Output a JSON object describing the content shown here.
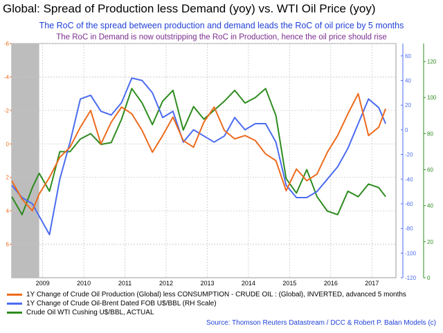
{
  "title": "Global: Spread of Production less Demand (yoy) vs. WTI Oil Price (yoy)",
  "subtitle": "The RoC of the spread between production and demand leads the RoC of oil price by 5 months",
  "subtitle2": "The RoC in Demand is now outstripping the RoC in Production, hence the oil price should rise",
  "source": "Source: Thomson Reuters Datastream / DCC & Robert P. Balan Models (c)",
  "colors": {
    "orange": "#ee6a1c",
    "blue": "#4a6bf0",
    "green": "#2e8b1f",
    "title_blue": "#1f3fd8",
    "purple": "#7b2b8f",
    "shade": "#bdbdbd"
  },
  "chart_data": {
    "type": "line",
    "x_range": [
      "2008-04",
      "2017-08"
    ],
    "x_ticks": [
      "2009",
      "2010",
      "2011",
      "2012",
      "2013",
      "2014",
      "2015",
      "2016",
      "2017"
    ],
    "shaded_period": [
      "2008-04",
      "2008-12"
    ],
    "grid": true,
    "legend_position": "bottom-left",
    "axes": {
      "left": {
        "min": -6,
        "max": 8,
        "inverted": true,
        "ticks": [
          "-6",
          "-4",
          "-2",
          "0",
          "2",
          "4",
          "6"
        ]
      },
      "right_inner": {
        "min": -120,
        "max": 70,
        "ticks": [
          "60",
          "40",
          "20",
          "0",
          "-20",
          "-40",
          "-60",
          "-80",
          "-100",
          "-120"
        ]
      },
      "right_outer": {
        "min": 0,
        "max": 130,
        "ticks": [
          "120",
          "100",
          "80",
          "60",
          "40",
          "20",
          "0"
        ]
      }
    },
    "series": [
      {
        "name": "1Y Change of Crude Oil Production (Global) less CONSUMPTION - CRUDE OIL : (Global), INVERTED, advanced 5 months",
        "axis": "left",
        "points": [
          [
            "2008-04",
            2.2
          ],
          [
            "2008-07",
            3.3
          ],
          [
            "2008-10",
            4.0
          ],
          [
            "2008-12",
            3.0
          ],
          [
            "2009-03",
            2.0
          ],
          [
            "2009-06",
            0.8
          ],
          [
            "2009-09",
            0.2
          ],
          [
            "2009-12",
            -1.0
          ],
          [
            "2010-03",
            -2.0
          ],
          [
            "2010-06",
            0.0
          ],
          [
            "2010-09",
            -1.3
          ],
          [
            "2010-12",
            -2.2
          ],
          [
            "2011-03",
            -1.8
          ],
          [
            "2011-06",
            -0.8
          ],
          [
            "2011-09",
            0.5
          ],
          [
            "2011-12",
            -0.5
          ],
          [
            "2012-03",
            -1.6
          ],
          [
            "2012-06",
            -0.2
          ],
          [
            "2012-09",
            0.2
          ],
          [
            "2012-12",
            -1.3
          ],
          [
            "2013-03",
            -2.2
          ],
          [
            "2013-06",
            -0.8
          ],
          [
            "2013-09",
            -0.3
          ],
          [
            "2013-12",
            -0.5
          ],
          [
            "2014-03",
            -0.2
          ],
          [
            "2014-06",
            0.6
          ],
          [
            "2014-09",
            1.0
          ],
          [
            "2014-12",
            2.8
          ],
          [
            "2015-03",
            1.5
          ],
          [
            "2015-06",
            2.2
          ],
          [
            "2015-09",
            1.8
          ],
          [
            "2015-12",
            0.5
          ],
          [
            "2016-03",
            -0.5
          ],
          [
            "2016-06",
            -1.8
          ],
          [
            "2016-09",
            -3.0
          ],
          [
            "2016-12",
            -0.5
          ],
          [
            "2017-03",
            -1.0
          ],
          [
            "2017-05",
            -2.1
          ]
        ]
      },
      {
        "name": "1Y Change of Crude Oil-Brent Dated FOB U$/BBL (RH Scale)",
        "axis": "right_inner",
        "points": [
          [
            "2008-04",
            -45
          ],
          [
            "2008-07",
            -55
          ],
          [
            "2008-10",
            -60
          ],
          [
            "2008-12",
            -70
          ],
          [
            "2009-03",
            -85
          ],
          [
            "2009-06",
            -40
          ],
          [
            "2009-09",
            -10
          ],
          [
            "2009-12",
            25
          ],
          [
            "2010-03",
            28
          ],
          [
            "2010-06",
            15
          ],
          [
            "2010-09",
            12
          ],
          [
            "2010-12",
            22
          ],
          [
            "2011-03",
            42
          ],
          [
            "2011-06",
            40
          ],
          [
            "2011-09",
            30
          ],
          [
            "2011-12",
            10
          ],
          [
            "2012-03",
            15
          ],
          [
            "2012-06",
            -10
          ],
          [
            "2012-09",
            0
          ],
          [
            "2012-12",
            -5
          ],
          [
            "2013-03",
            -10
          ],
          [
            "2013-06",
            -5
          ],
          [
            "2013-09",
            10
          ],
          [
            "2013-12",
            0
          ],
          [
            "2014-03",
            5
          ],
          [
            "2014-06",
            5
          ],
          [
            "2014-09",
            -10
          ],
          [
            "2014-12",
            -45
          ],
          [
            "2015-03",
            -55
          ],
          [
            "2015-06",
            -55
          ],
          [
            "2015-09",
            -50
          ],
          [
            "2015-12",
            -40
          ],
          [
            "2016-03",
            -30
          ],
          [
            "2016-06",
            -15
          ],
          [
            "2016-09",
            5
          ],
          [
            "2016-12",
            25
          ],
          [
            "2017-03",
            18
          ],
          [
            "2017-05",
            5
          ]
        ]
      },
      {
        "name": "Crude Oil WTI Cushing U$/BBL, ACTUAL",
        "axis": "right_outer",
        "points": [
          [
            "2008-04",
            45
          ],
          [
            "2008-07",
            35
          ],
          [
            "2008-10",
            50
          ],
          [
            "2008-12",
            58
          ],
          [
            "2009-03",
            48
          ],
          [
            "2009-06",
            70
          ],
          [
            "2009-09",
            70
          ],
          [
            "2009-12",
            77
          ],
          [
            "2010-03",
            80
          ],
          [
            "2010-06",
            74
          ],
          [
            "2010-09",
            75
          ],
          [
            "2010-12",
            88
          ],
          [
            "2011-03",
            105
          ],
          [
            "2011-06",
            97
          ],
          [
            "2011-09",
            85
          ],
          [
            "2011-12",
            98
          ],
          [
            "2012-03",
            104
          ],
          [
            "2012-06",
            82
          ],
          [
            "2012-09",
            95
          ],
          [
            "2012-12",
            88
          ],
          [
            "2013-03",
            93
          ],
          [
            "2013-06",
            98
          ],
          [
            "2013-09",
            104
          ],
          [
            "2013-12",
            97
          ],
          [
            "2014-03",
            100
          ],
          [
            "2014-06",
            105
          ],
          [
            "2014-09",
            90
          ],
          [
            "2014-12",
            55
          ],
          [
            "2015-03",
            47
          ],
          [
            "2015-06",
            60
          ],
          [
            "2015-09",
            45
          ],
          [
            "2015-12",
            37
          ],
          [
            "2016-03",
            35
          ],
          [
            "2016-06",
            48
          ],
          [
            "2016-09",
            45
          ],
          [
            "2016-12",
            52
          ],
          [
            "2017-03",
            50
          ],
          [
            "2017-05",
            45
          ]
        ]
      }
    ]
  }
}
